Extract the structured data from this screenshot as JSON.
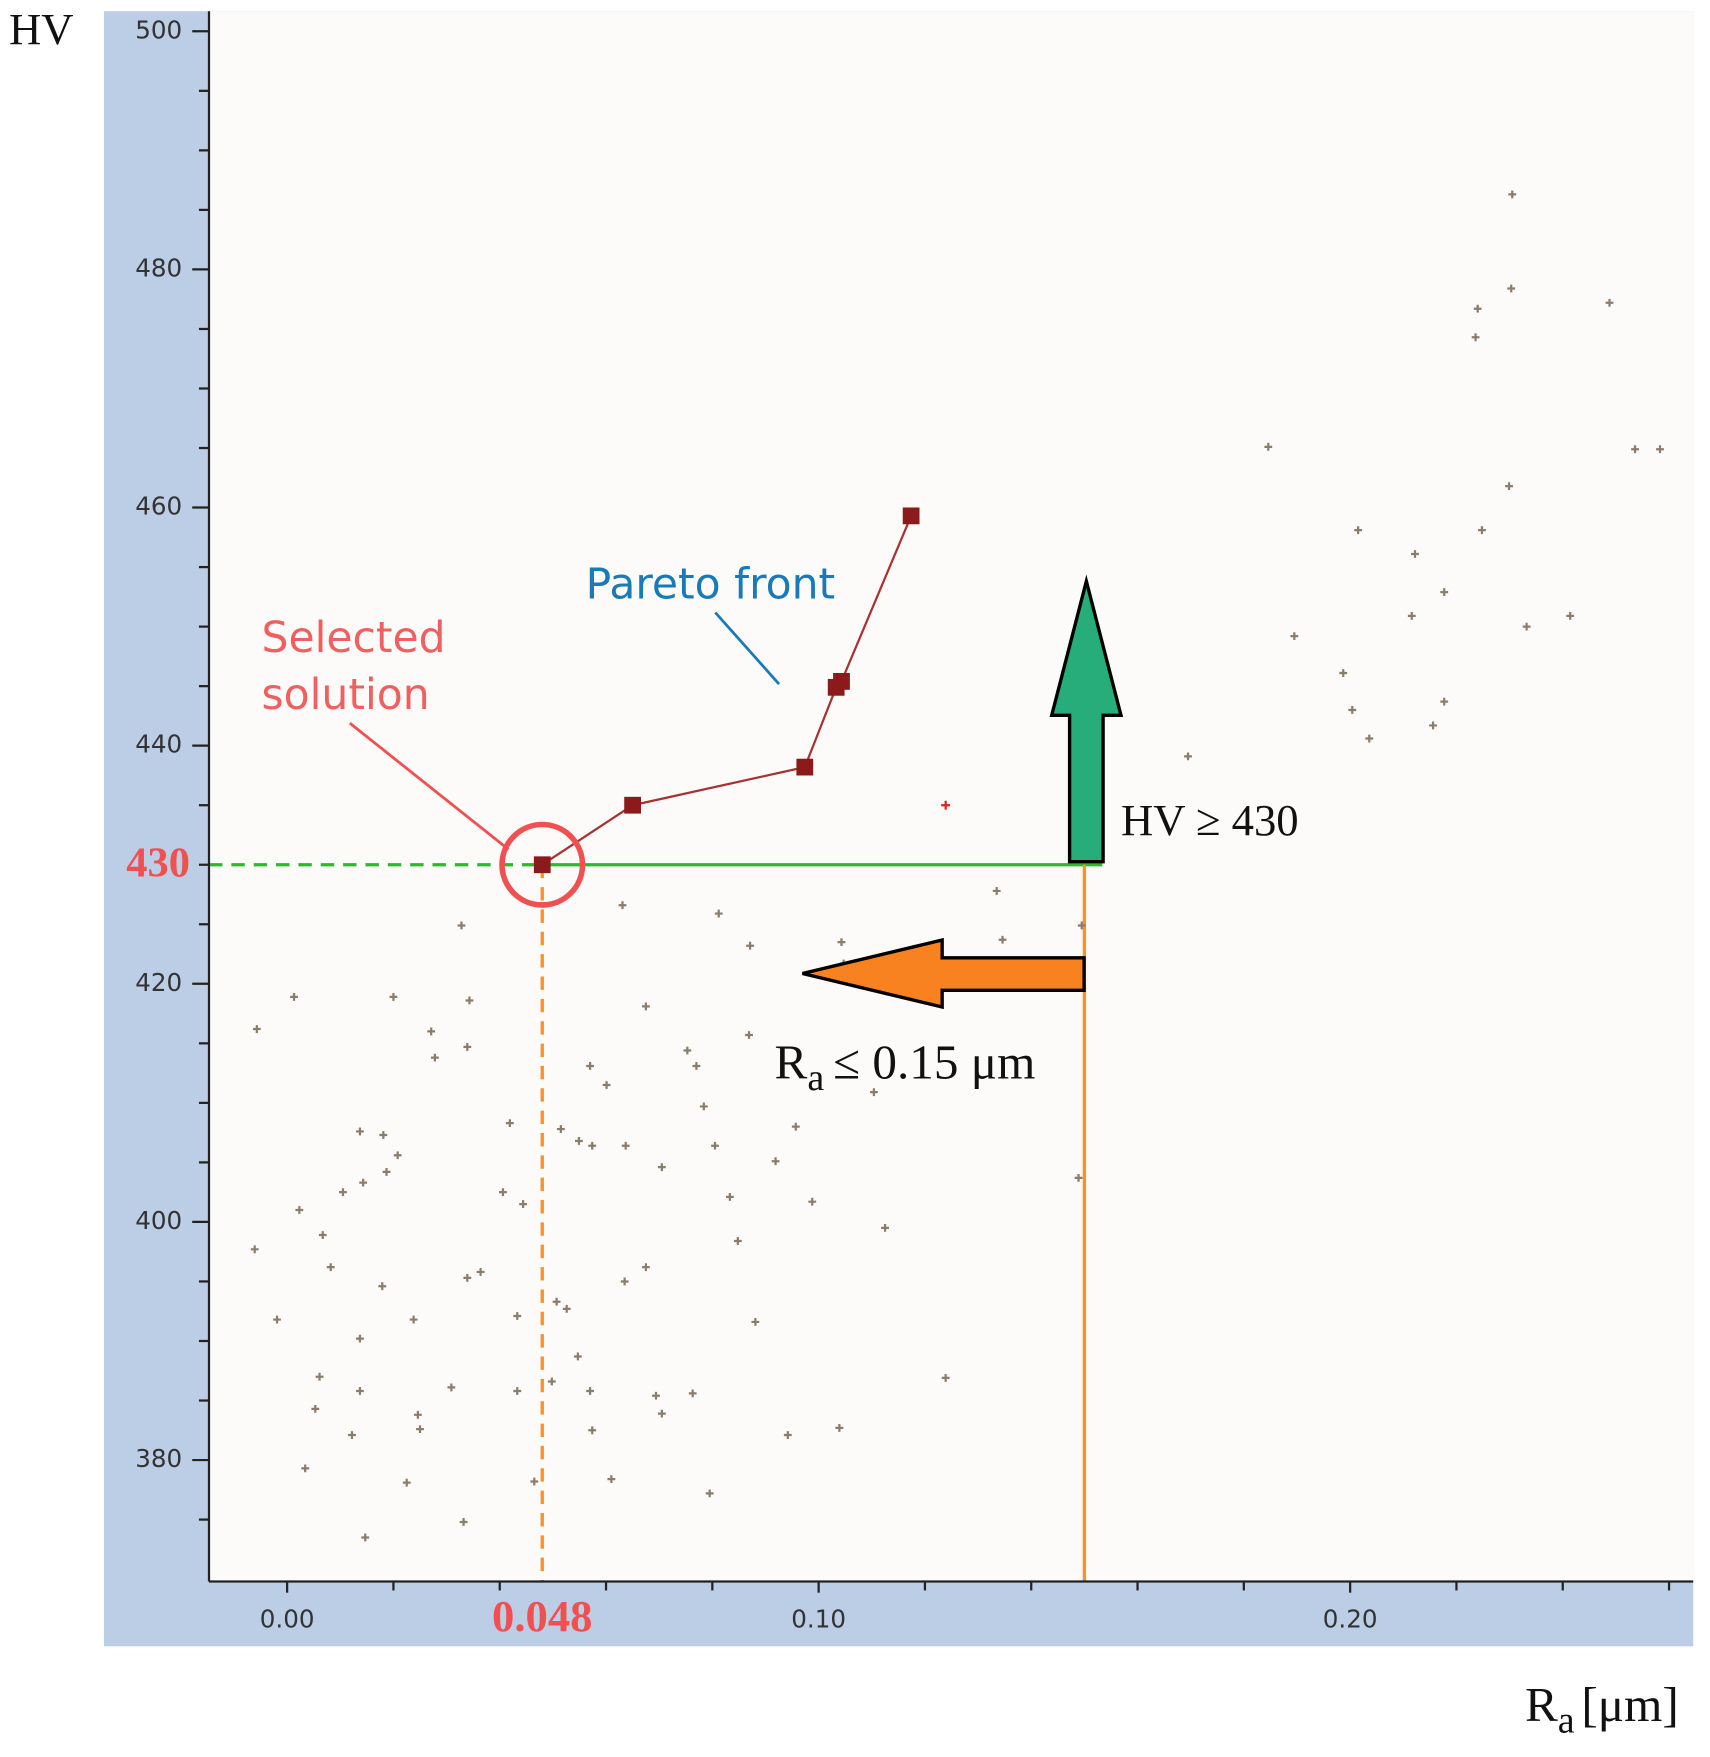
{
  "chart_data": {
    "type": "scatter",
    "y_label": "HV",
    "x_label": {
      "symbol": "R",
      "subscript": "a",
      "unit": "[μm]"
    },
    "xlim": [
      -0.0147,
      0.2635
    ],
    "ylim": [
      369.8,
      501.5
    ],
    "xticks": [
      {
        "value": 0,
        "label": "0.00"
      },
      {
        "value": 0.1,
        "label": "0.10"
      },
      {
        "value": 0.2,
        "label": "0.20"
      }
    ],
    "minor_xticks": [
      0.02,
      0.04,
      0.06,
      0.08,
      0.12,
      0.14,
      0.16,
      0.18,
      0.22,
      0.24,
      0.26
    ],
    "yticks": [
      380,
      400,
      420,
      440,
      460,
      480,
      500
    ],
    "minor_yticks": [
      375,
      385,
      390,
      395,
      405,
      410,
      415,
      425,
      430,
      435,
      445,
      450,
      455,
      465,
      470,
      475,
      485,
      490,
      495
    ],
    "points": {
      "color": "#8b7d6b",
      "x": [
        -0.0057,
        0.0013,
        0.0023,
        0.0067,
        0.0082,
        -0.0019,
        -0.0061,
        0.0061,
        0.0053,
        0.0034,
        0.0122,
        0.0137,
        0.0137,
        0.0179,
        0.0105,
        0.0143,
        0.0137,
        0.0181,
        0.0187,
        0.0208,
        0.02,
        0.0271,
        0.0278,
        0.0339,
        0.0343,
        0.0328,
        0.0238,
        0.0246,
        0.025,
        0.0225,
        0.0147,
        0.0309,
        0.0332,
        0.0339,
        0.0364,
        0.0406,
        0.0419,
        0.0444,
        0.0433,
        0.0433,
        0.0465,
        0.0498,
        0.0507,
        0.0526,
        0.0515,
        0.0549,
        0.0574,
        0.057,
        0.0601,
        0.0547,
        0.057,
        0.0574,
        0.061,
        0.0631,
        0.0675,
        0.0637,
        0.0635,
        0.0675,
        0.0705,
        0.0694,
        0.0705,
        0.0763,
        0.0753,
        0.077,
        0.0784,
        0.0805,
        0.0812,
        0.0833,
        0.0848,
        0.0795,
        0.0869,
        0.0871,
        0.0881,
        0.0919,
        0.0942,
        0.0957,
        0.0988,
        0.1039,
        0.1043,
        0.1047,
        0.1104,
        0.1125,
        0.1239,
        0.1335,
        0.1346,
        0.1489,
        0.1495,
        0.1695,
        0.1846,
        0.1895,
        0.1987,
        0.2015,
        0.2004,
        0.2036,
        0.2122,
        0.2116,
        0.2177,
        0.2177,
        0.2156,
        0.2248,
        0.2236,
        0.224,
        0.2299,
        0.2303,
        0.2305,
        0.2332,
        0.2414,
        0.2488,
        0.2536,
        0.2583
      ],
      "y": [
        416.2,
        418.9,
        401.0,
        398.9,
        396.2,
        391.8,
        397.7,
        387.0,
        384.3,
        379.3,
        382.1,
        385.8,
        390.2,
        394.6,
        402.5,
        403.3,
        407.6,
        407.3,
        404.2,
        405.6,
        418.9,
        416.0,
        413.8,
        414.7,
        418.6,
        424.9,
        391.8,
        383.8,
        382.6,
        378.1,
        373.5,
        386.1,
        374.8,
        395.3,
        395.8,
        402.5,
        408.3,
        401.5,
        392.1,
        385.8,
        378.2,
        386.6,
        393.3,
        392.7,
        407.8,
        406.8,
        406.4,
        413.1,
        411.5,
        388.7,
        385.8,
        382.5,
        378.4,
        426.6,
        418.1,
        406.4,
        395.0,
        396.2,
        404.6,
        385.4,
        383.9,
        385.6,
        414.4,
        413.1,
        409.7,
        406.4,
        425.9,
        402.1,
        398.4,
        377.2,
        415.7,
        423.2,
        391.6,
        405.1,
        382.1,
        408.0,
        401.7,
        382.7,
        423.5,
        421.7,
        410.9,
        399.5,
        386.9,
        427.8,
        423.7,
        403.7,
        424.9,
        439.1,
        465.1,
        449.2,
        446.1,
        458.1,
        443.0,
        440.6,
        456.1,
        450.9,
        452.9,
        443.7,
        441.7,
        458.1,
        474.3,
        476.7,
        461.8,
        478.4,
        486.3,
        450.0,
        450.9,
        477.2,
        464.9,
        464.9
      ]
    },
    "highlight": {
      "x": 0.1239,
      "y": 435.0,
      "color": "#e02020"
    },
    "pareto_front": {
      "label": "Pareto front",
      "color": "#8b1a1a",
      "line_color": "#a83232",
      "x": [
        0.048,
        0.065,
        0.0974,
        0.1033,
        0.1043,
        0.1174
      ],
      "y": [
        430,
        435,
        438.2,
        444.9,
        445.4,
        459.3
      ]
    },
    "selected": {
      "label": [
        "Selected",
        "solution"
      ],
      "x": 0.048,
      "y": 430,
      "color": "#f05050"
    },
    "constraints": [
      {
        "axis": "y",
        "value": 430,
        "color": "#2db82d",
        "label": "HV ≥ 430"
      },
      {
        "axis": "x",
        "value": 0.15,
        "color": "#f7922f",
        "label": {
          "symbol": "R",
          "subscript": "a",
          "text": "≤ 0.15 μm"
        }
      }
    ]
  }
}
